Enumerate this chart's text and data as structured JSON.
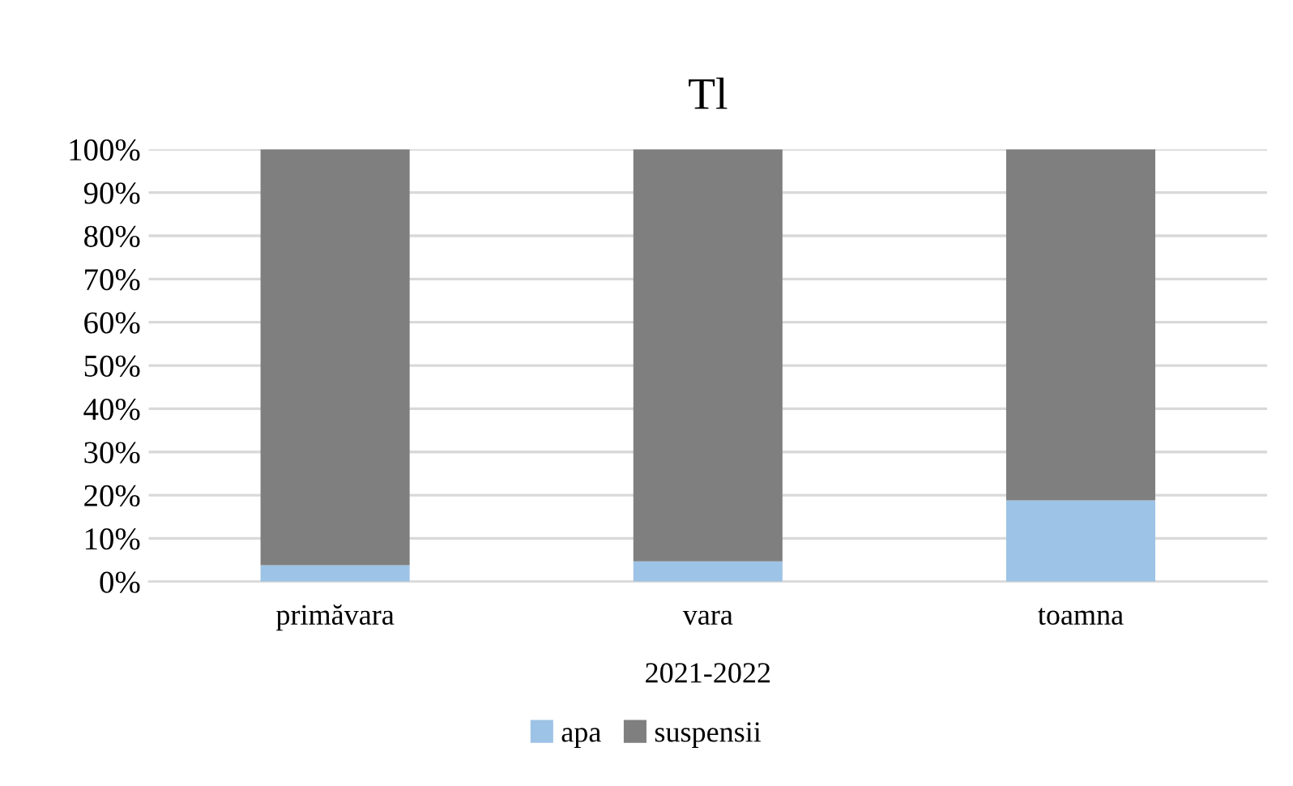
{
  "chart_data": {
    "type": "bar",
    "title": "Tl",
    "xlabel": "2021-2022",
    "categories": [
      "primăvara",
      "vara",
      "toamna"
    ],
    "stacked": true,
    "series": [
      {
        "name": "apa",
        "color": "#9dc3e6",
        "values": [
          3.8,
          4.7,
          18.8
        ]
      },
      {
        "name": "suspensii",
        "color": "#7f7f7f",
        "values": [
          96.2,
          95.3,
          81.2
        ]
      }
    ],
    "ylim": [
      0,
      100
    ],
    "yticks": [
      {
        "value": 0,
        "label": "0%"
      },
      {
        "value": 10,
        "label": "10%"
      },
      {
        "value": 20,
        "label": "20%"
      },
      {
        "value": 30,
        "label": "30%"
      },
      {
        "value": 40,
        "label": "40%"
      },
      {
        "value": 50,
        "label": "50%"
      },
      {
        "value": 60,
        "label": "60%"
      },
      {
        "value": 70,
        "label": "70%"
      },
      {
        "value": 80,
        "label": "80%"
      },
      {
        "value": 90,
        "label": "90%"
      },
      {
        "value": 100,
        "label": "100%"
      }
    ],
    "grid": "y",
    "legend": "bottom"
  }
}
